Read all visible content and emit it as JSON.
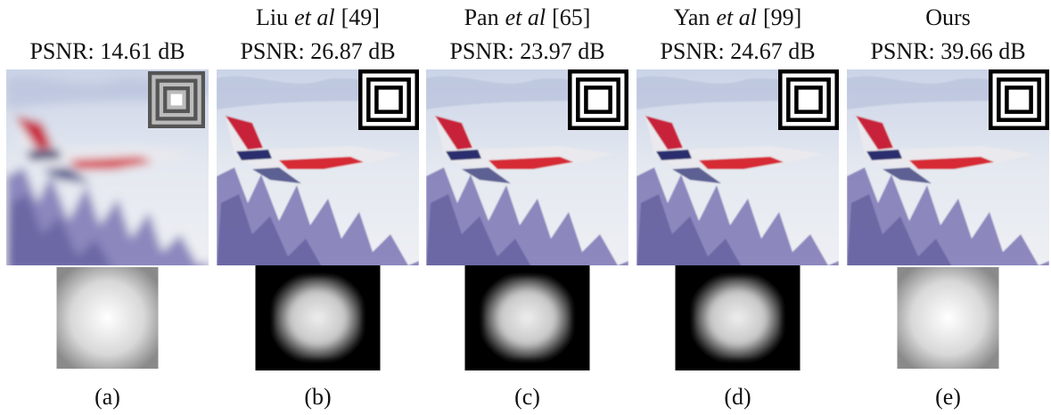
{
  "columns": [
    {
      "psnr": "PSNR: 14.61 dB",
      "caption": "(a)"
    },
    {
      "method": {
        "name": "Liu",
        "etal": "et al",
        "ref": "[49]"
      },
      "psnr": "PSNR: 26.87 dB",
      "caption": "(b)"
    },
    {
      "method": {
        "name": "Pan",
        "etal": "et al",
        "ref": "[65]"
      },
      "psnr": "PSNR: 23.97 dB",
      "caption": "(c)"
    },
    {
      "method": {
        "name": "Yan",
        "etal": "et al",
        "ref": "[99]"
      },
      "psnr": "PSNR: 24.67 dB",
      "caption": "(d)"
    },
    {
      "method": {
        "name": "Ours"
      },
      "psnr": "PSNR: 39.66 dB",
      "caption": "(e)"
    }
  ]
}
